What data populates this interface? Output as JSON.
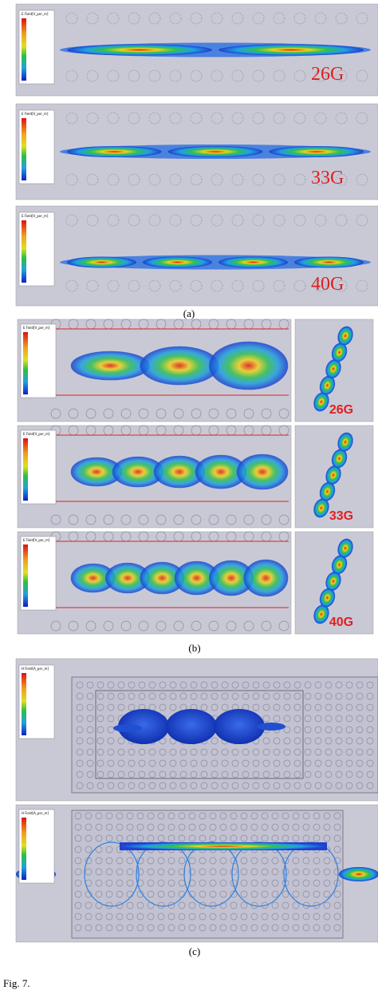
{
  "panels_a": {
    "legend_title": "E Field[V_per_m]",
    "images": [
      {
        "label": "26G"
      },
      {
        "label": "33G"
      },
      {
        "label": "40G"
      }
    ],
    "caption": "(a)"
  },
  "panels_b": {
    "legend_title": "E Field[V_per_m]",
    "images": [
      {
        "label": "26G"
      },
      {
        "label": "33G"
      },
      {
        "label": "40G"
      }
    ],
    "caption": "(b)"
  },
  "panels_c": {
    "legend_title": "H Field[A_per_m]",
    "caption": "(c)"
  },
  "figure_caption": "Fig. 7."
}
